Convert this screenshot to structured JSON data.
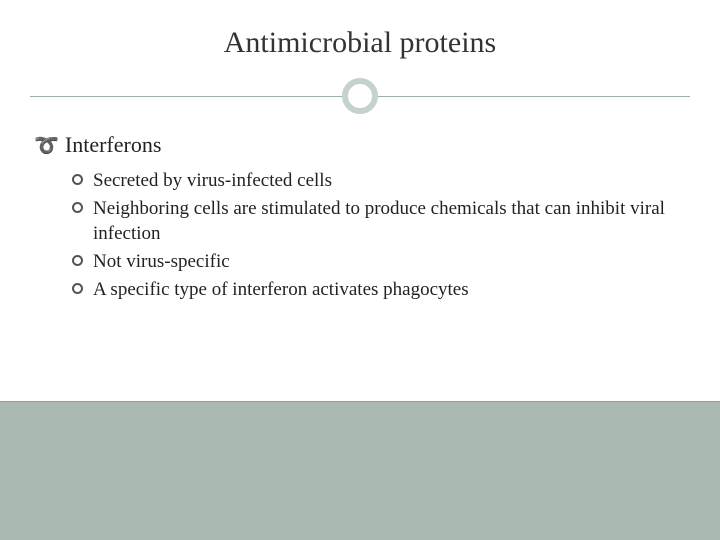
{
  "slide": {
    "title": "Antimicrobial proteins",
    "heading": "Interferons",
    "items": [
      "Secreted by virus-infected cells",
      "Neighboring cells are stimulated to produce chemicals that can inhibit viral infection",
      "Not virus-specific",
      "A specific type of interferon activates phagocytes"
    ]
  },
  "style": {
    "title_fontsize": 30,
    "heading_fontsize": 22,
    "item_fontsize": 19,
    "title_color": "#333333",
    "text_color": "#222222",
    "divider_color": "#9bb0a8",
    "ring_color": "#c5d2cc",
    "footer_band_color": "#aab9b2",
    "background_color": "#ffffff",
    "bullet_ring_color": "#555555",
    "font_family": "Georgia",
    "footer_band_height": 138,
    "divider_ring_size": 36,
    "divider_ring_border": 6
  }
}
